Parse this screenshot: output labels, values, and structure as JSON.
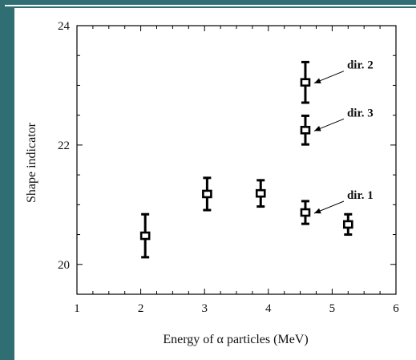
{
  "chart_data": {
    "type": "scatter",
    "xlabel": "Energy of α particles (MeV)",
    "ylabel": "Shape indicator",
    "xlim": [
      1,
      6
    ],
    "ylim": [
      19.5,
      24
    ],
    "x_ticks": [
      "1",
      "2",
      "3",
      "4",
      "5",
      "6"
    ],
    "y_ticks": [
      "20",
      "22",
      "24"
    ],
    "grid": false,
    "points": [
      {
        "x": 2.07,
        "y": 20.48,
        "err": 0.36
      },
      {
        "x": 3.04,
        "y": 21.18,
        "err": 0.27
      },
      {
        "x": 3.88,
        "y": 21.19,
        "err": 0.22
      },
      {
        "x": 4.58,
        "y": 20.87,
        "err": 0.19
      },
      {
        "x": 4.58,
        "y": 22.25,
        "err": 0.24
      },
      {
        "x": 4.58,
        "y": 23.05,
        "err": 0.34
      },
      {
        "x": 5.25,
        "y": 20.67,
        "err": 0.17
      }
    ],
    "annotations": [
      {
        "text": "dir. 2",
        "x": 4.58,
        "y": 23.05
      },
      {
        "text": "dir. 3",
        "x": 4.58,
        "y": 22.25
      },
      {
        "text": "dir. 1",
        "x": 4.58,
        "y": 20.87
      }
    ]
  }
}
